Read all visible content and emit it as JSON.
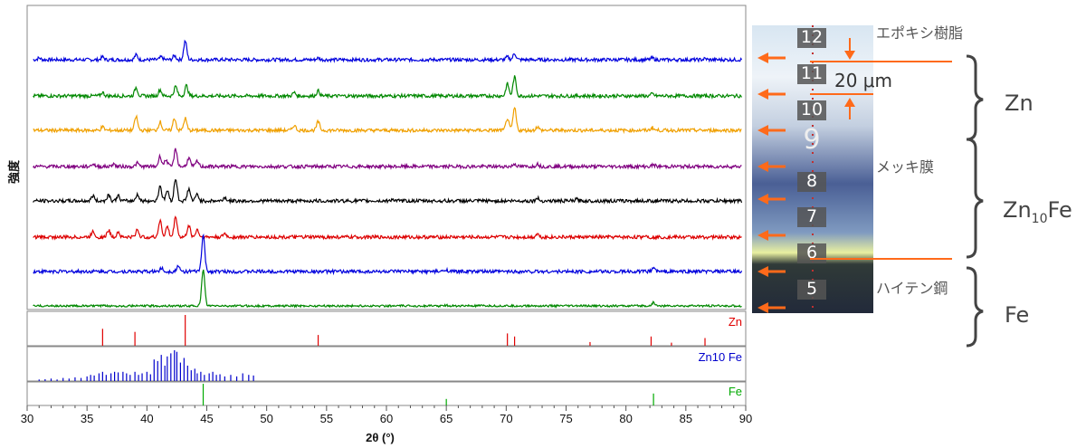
{
  "chart_data": {
    "type": "line",
    "title": "",
    "xlabel": "2θ (°)",
    "ylabel": "強度",
    "xlim": [
      30,
      90
    ],
    "xticks": [
      30,
      35,
      40,
      45,
      50,
      55,
      60,
      65,
      70,
      75,
      80,
      85,
      90
    ],
    "grid": false,
    "legend": "none",
    "series": [
      {
        "color": "#0000dd",
        "baseline": 0.05,
        "peaks": [
          [
            31,
            0.05
          ],
          [
            36.3,
            0.08
          ],
          [
            39.1,
            0.14
          ],
          [
            41.2,
            0.08
          ],
          [
            42.3,
            0.12
          ],
          [
            43.2,
            0.55
          ],
          [
            54.3,
            0.05
          ],
          [
            70.1,
            0.08
          ],
          [
            70.7,
            0.18
          ],
          [
            82.2,
            0.05
          ],
          [
            86.6,
            0.03
          ]
        ]
      },
      {
        "color": "#008800",
        "baseline": 0.05,
        "peaks": [
          [
            36.3,
            0.1
          ],
          [
            39.1,
            0.25
          ],
          [
            41.1,
            0.18
          ],
          [
            42.4,
            0.28
          ],
          [
            43.3,
            0.3
          ],
          [
            52.3,
            0.1
          ],
          [
            54.3,
            0.15
          ],
          [
            70.1,
            0.35
          ],
          [
            70.7,
            0.55
          ],
          [
            82.2,
            0.06
          ]
        ]
      },
      {
        "color": "#f0a000",
        "baseline": 0.05,
        "peaks": [
          [
            36.3,
            0.1
          ],
          [
            39.1,
            0.4
          ],
          [
            41.1,
            0.25
          ],
          [
            42.3,
            0.35
          ],
          [
            43.2,
            0.35
          ],
          [
            52.3,
            0.15
          ],
          [
            54.3,
            0.25
          ],
          [
            70.1,
            0.35
          ],
          [
            70.7,
            0.65
          ],
          [
            72.6,
            0.1
          ],
          [
            82.2,
            0.08
          ]
        ]
      },
      {
        "color": "#800080",
        "baseline": 0.05,
        "peaks": [
          [
            35.5,
            0.08
          ],
          [
            37.2,
            0.08
          ],
          [
            39.2,
            0.1
          ],
          [
            41.1,
            0.3
          ],
          [
            41.6,
            0.2
          ],
          [
            42.4,
            0.5
          ],
          [
            43.5,
            0.25
          ],
          [
            44.2,
            0.15
          ],
          [
            70.7,
            0.08
          ],
          [
            72.6,
            0.08
          ],
          [
            82.3,
            0.05
          ]
        ]
      },
      {
        "color": "#000000",
        "baseline": 0.05,
        "peaks": [
          [
            35.5,
            0.15
          ],
          [
            36.8,
            0.18
          ],
          [
            37.6,
            0.15
          ],
          [
            39.2,
            0.2
          ],
          [
            41.1,
            0.45
          ],
          [
            41.7,
            0.3
          ],
          [
            42.4,
            0.65
          ],
          [
            43.5,
            0.35
          ],
          [
            44.2,
            0.2
          ],
          [
            46.5,
            0.1
          ],
          [
            60.5,
            0.05
          ],
          [
            72.6,
            0.08
          ],
          [
            75.9,
            0.05
          ]
        ]
      },
      {
        "color": "#dd0000",
        "baseline": 0.05,
        "peaks": [
          [
            35.5,
            0.18
          ],
          [
            36.8,
            0.2
          ],
          [
            37.6,
            0.15
          ],
          [
            39.2,
            0.22
          ],
          [
            41.1,
            0.5
          ],
          [
            41.7,
            0.3
          ],
          [
            42.4,
            0.6
          ],
          [
            43.5,
            0.35
          ],
          [
            44.2,
            0.22
          ],
          [
            46.5,
            0.1
          ],
          [
            72.6,
            0.1
          ],
          [
            81.6,
            0.05
          ]
        ]
      },
      {
        "color": "#0000dd",
        "baseline": 0.05,
        "peaks": [
          [
            41.2,
            0.1
          ],
          [
            42.6,
            0.15
          ],
          [
            44.7,
            1.05
          ],
          [
            65.0,
            0.06
          ],
          [
            82.3,
            0.12
          ]
        ]
      },
      {
        "color": "#008800",
        "baseline": 0.03,
        "peaks": [
          [
            44.7,
            1.05
          ],
          [
            65.0,
            0.02
          ],
          [
            82.3,
            0.1
          ]
        ]
      }
    ],
    "references": [
      {
        "label": "Zn",
        "color": "#e00000",
        "lines": [
          [
            36.3,
            0.55
          ],
          [
            39.0,
            0.45
          ],
          [
            43.2,
            1.0
          ],
          [
            54.3,
            0.35
          ],
          [
            70.1,
            0.4
          ],
          [
            70.7,
            0.3
          ],
          [
            77.0,
            0.12
          ],
          [
            82.1,
            0.3
          ],
          [
            83.8,
            0.1
          ],
          [
            86.6,
            0.25
          ]
        ]
      },
      {
        "label": "Zn10 Fe",
        "color": "#0000cc",
        "lines": [
          [
            31.0,
            0.05
          ],
          [
            31.5,
            0.06
          ],
          [
            32.0,
            0.08
          ],
          [
            32.5,
            0.05
          ],
          [
            33.0,
            0.1
          ],
          [
            33.5,
            0.08
          ],
          [
            34.0,
            0.12
          ],
          [
            34.5,
            0.1
          ],
          [
            35.0,
            0.15
          ],
          [
            35.3,
            0.2
          ],
          [
            35.6,
            0.18
          ],
          [
            36.0,
            0.25
          ],
          [
            36.3,
            0.3
          ],
          [
            36.6,
            0.2
          ],
          [
            37.0,
            0.25
          ],
          [
            37.3,
            0.3
          ],
          [
            37.6,
            0.28
          ],
          [
            38.0,
            0.3
          ],
          [
            38.3,
            0.25
          ],
          [
            38.6,
            0.2
          ],
          [
            39.0,
            0.3
          ],
          [
            39.3,
            0.2
          ],
          [
            39.6,
            0.25
          ],
          [
            40.0,
            0.3
          ],
          [
            40.3,
            0.22
          ],
          [
            40.6,
            0.7
          ],
          [
            40.9,
            0.65
          ],
          [
            41.2,
            0.85
          ],
          [
            41.5,
            0.5
          ],
          [
            41.7,
            0.8
          ],
          [
            42.0,
            0.9
          ],
          [
            42.3,
            1.0
          ],
          [
            42.5,
            0.95
          ],
          [
            42.8,
            0.6
          ],
          [
            43.1,
            0.75
          ],
          [
            43.4,
            0.5
          ],
          [
            43.7,
            0.35
          ],
          [
            44.0,
            0.4
          ],
          [
            44.2,
            0.25
          ],
          [
            44.5,
            0.3
          ],
          [
            44.8,
            0.2
          ],
          [
            45.2,
            0.25
          ],
          [
            45.5,
            0.3
          ],
          [
            45.8,
            0.2
          ],
          [
            46.1,
            0.22
          ],
          [
            46.5,
            0.15
          ],
          [
            47.0,
            0.2
          ],
          [
            47.5,
            0.15
          ],
          [
            48.0,
            0.25
          ],
          [
            48.5,
            0.2
          ],
          [
            48.9,
            0.18
          ]
        ]
      },
      {
        "label": "Fe",
        "color": "#00aa00",
        "lines": [
          [
            44.7,
            1.0
          ],
          [
            65.0,
            0.3
          ],
          [
            82.3,
            0.55
          ]
        ]
      }
    ]
  },
  "micrograph": {
    "labels": {
      "layer_labels": [
        "12",
        "11",
        "10",
        "9",
        "8",
        "7",
        "6",
        "5"
      ],
      "scale_bar": "20 μm",
      "epoxy": "エポキシ樹脂",
      "plating": "メッキ膜",
      "steel": "ハイテン鋼"
    }
  },
  "phases": {
    "zn": "Zn",
    "zn10fe_base": "Zn",
    "zn10fe_sub": "10",
    "zn10fe_suffix": "Fe",
    "fe": "Fe"
  }
}
